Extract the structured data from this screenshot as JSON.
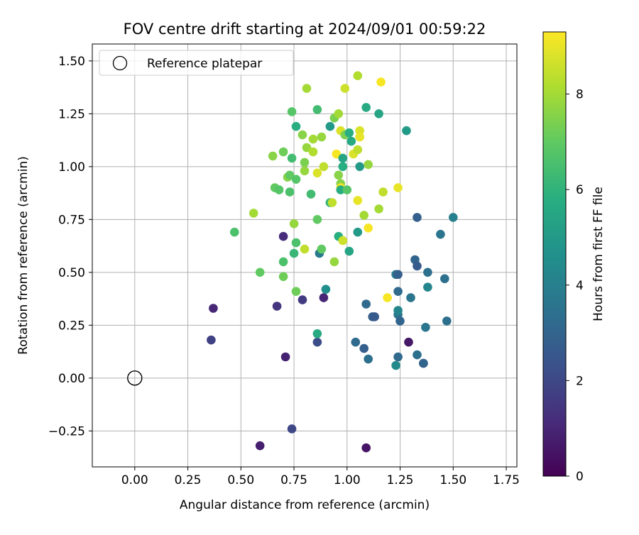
{
  "chart_data": {
    "type": "scatter",
    "title": "FOV centre drift starting at 2024/09/01 00:59:22",
    "xlabel": "Angular distance from reference (arcmin)",
    "ylabel": "Rotation from reference (arcmin)",
    "xlim": [
      -0.2,
      1.8
    ],
    "ylim": [
      -0.42,
      1.58
    ],
    "xticks": [
      "0.00",
      "0.25",
      "0.50",
      "0.75",
      "1.00",
      "1.25",
      "1.50",
      "1.75"
    ],
    "yticks": [
      "−0.25",
      "0.00",
      "0.25",
      "0.50",
      "0.75",
      "1.00",
      "1.25",
      "1.50"
    ],
    "grid": true,
    "legend": {
      "placement": "top-left",
      "entries": [
        "Reference platepar"
      ]
    },
    "reference_point": {
      "label": "Reference platepar",
      "x": 0.0,
      "y": 0.0
    },
    "colorbar": {
      "label": "Hours from first FF file",
      "range": [
        0,
        9.3
      ],
      "ticks": [
        "0",
        "2",
        "4",
        "6",
        "8"
      ],
      "colormap": "viridis"
    },
    "series": [
      {
        "points": [
          [
            0.36,
            0.18,
            1.8
          ],
          [
            0.37,
            0.33,
            1.0
          ],
          [
            0.59,
            -0.32,
            0.8
          ],
          [
            0.67,
            0.34,
            1.4
          ],
          [
            0.7,
            0.67,
            1.2
          ],
          [
            0.71,
            0.1,
            0.9
          ],
          [
            0.74,
            -0.24,
            2.0
          ],
          [
            0.79,
            0.37,
            1.6
          ],
          [
            0.86,
            0.17,
            2.2
          ],
          [
            0.89,
            0.38,
            1.0
          ],
          [
            1.09,
            -0.33,
            0.5
          ],
          [
            1.29,
            0.17,
            0.6
          ],
          [
            1.36,
            0.07,
            1.2
          ],
          [
            1.23,
            0.49,
            3.8
          ],
          [
            1.24,
            0.49,
            2.8
          ],
          [
            1.24,
            0.41,
            3.2
          ],
          [
            1.24,
            0.3,
            3.6
          ],
          [
            1.24,
            0.32,
            4.2
          ],
          [
            1.25,
            0.27,
            3.0
          ],
          [
            1.24,
            0.1,
            3.2
          ],
          [
            1.23,
            0.06,
            4.4
          ],
          [
            1.32,
            0.56,
            3.0
          ],
          [
            1.33,
            0.53,
            2.6
          ],
          [
            1.3,
            0.38,
            3.6
          ],
          [
            1.33,
            0.76,
            2.8
          ],
          [
            1.38,
            0.5,
            3.4
          ],
          [
            1.37,
            0.24,
            3.6
          ],
          [
            1.38,
            0.43,
            4.2
          ],
          [
            1.33,
            0.11,
            3.4
          ],
          [
            1.36,
            0.07,
            3.0
          ],
          [
            1.44,
            0.68,
            3.6
          ],
          [
            1.46,
            0.47,
            3.4
          ],
          [
            1.47,
            0.27,
            3.4
          ],
          [
            1.5,
            0.76,
            4.0
          ],
          [
            1.09,
            0.35,
            3.2
          ],
          [
            1.12,
            0.29,
            2.8
          ],
          [
            1.13,
            0.29,
            2.6
          ],
          [
            1.04,
            0.17,
            3.2
          ],
          [
            1.08,
            0.14,
            2.8
          ],
          [
            1.1,
            0.09,
            3.4
          ],
          [
            0.9,
            0.42,
            4.6
          ],
          [
            0.87,
            0.59,
            3.8
          ],
          [
            0.47,
            0.69,
            6.6
          ],
          [
            0.56,
            0.78,
            8.0
          ],
          [
            0.59,
            0.5,
            7.0
          ],
          [
            0.65,
            1.05,
            7.6
          ],
          [
            0.7,
            1.07,
            7.2
          ],
          [
            0.66,
            0.9,
            7.0
          ],
          [
            0.68,
            0.89,
            6.8
          ],
          [
            0.7,
            0.55,
            6.6
          ],
          [
            0.7,
            0.48,
            7.2
          ],
          [
            0.72,
            0.95,
            7.6
          ],
          [
            0.73,
            0.88,
            6.6
          ],
          [
            0.73,
            0.96,
            7.0
          ],
          [
            0.74,
            1.26,
            6.8
          ],
          [
            0.74,
            1.04,
            6.4
          ],
          [
            0.75,
            0.59,
            6.2
          ],
          [
            0.75,
            0.73,
            7.8
          ],
          [
            0.76,
            0.64,
            6.6
          ],
          [
            0.76,
            0.41,
            7.2
          ],
          [
            0.76,
            1.19,
            5.8
          ],
          [
            0.76,
            0.94,
            6.8
          ],
          [
            0.79,
            1.15,
            7.6
          ],
          [
            0.8,
            1.02,
            7.4
          ],
          [
            0.8,
            0.98,
            7.8
          ],
          [
            0.81,
            1.09,
            7.8
          ],
          [
            0.8,
            0.61,
            8.4
          ],
          [
            0.81,
            1.37,
            8.0
          ],
          [
            0.83,
            0.87,
            6.4
          ],
          [
            0.84,
            1.13,
            8.0
          ],
          [
            0.84,
            1.07,
            8.2
          ],
          [
            0.86,
            1.27,
            6.4
          ],
          [
            0.86,
            0.97,
            8.8
          ],
          [
            0.86,
            0.75,
            7.0
          ],
          [
            0.88,
            1.14,
            7.8
          ],
          [
            0.88,
            0.61,
            7.0
          ],
          [
            0.89,
            1.0,
            8.4
          ],
          [
            0.92,
            1.19,
            5.0
          ],
          [
            0.92,
            0.83,
            6.0
          ],
          [
            0.93,
            0.83,
            8.4
          ],
          [
            0.94,
            1.23,
            7.4
          ],
          [
            0.94,
            0.55,
            7.8
          ],
          [
            0.95,
            1.06,
            9.2
          ],
          [
            0.96,
            1.25,
            8.0
          ],
          [
            0.96,
            0.67,
            5.8
          ],
          [
            0.96,
            0.96,
            7.6
          ],
          [
            0.97,
            0.92,
            7.6
          ],
          [
            0.97,
            0.9,
            9.2
          ],
          [
            0.97,
            1.17,
            8.8
          ],
          [
            0.97,
            0.89,
            5.8
          ],
          [
            0.98,
            1.04,
            5.4
          ],
          [
            0.98,
            1.0,
            5.8
          ],
          [
            0.98,
            0.65,
            8.6
          ],
          [
            0.99,
            1.37,
            8.6
          ],
          [
            0.99,
            1.15,
            7.4
          ],
          [
            1.0,
            0.89,
            6.8
          ],
          [
            1.01,
            1.16,
            5.8
          ],
          [
            1.01,
            0.6,
            5.4
          ],
          [
            1.03,
            1.06,
            8.8
          ],
          [
            1.05,
            1.43,
            8.2
          ],
          [
            1.05,
            0.69,
            5.0
          ],
          [
            1.05,
            1.08,
            8.4
          ],
          [
            1.06,
            1.17,
            8.8
          ],
          [
            1.06,
            1.14,
            9.0
          ],
          [
            1.06,
            1.0,
            5.0
          ],
          [
            1.05,
            0.84,
            9.0
          ],
          [
            1.08,
            0.77,
            8.0
          ],
          [
            1.09,
            1.28,
            5.6
          ],
          [
            1.1,
            1.01,
            7.8
          ],
          [
            1.1,
            0.71,
            9.2
          ],
          [
            1.15,
            1.25,
            5.4
          ],
          [
            1.15,
            0.8,
            8.0
          ],
          [
            1.16,
            1.4,
            9.2
          ],
          [
            1.17,
            0.88,
            8.4
          ],
          [
            1.19,
            0.38,
            9.2
          ],
          [
            1.24,
            0.9,
            9.0
          ],
          [
            1.28,
            1.17,
            5.0
          ],
          [
            0.86,
            0.21,
            5.6
          ],
          [
            1.02,
            1.12,
            5.6
          ]
        ]
      }
    ]
  }
}
